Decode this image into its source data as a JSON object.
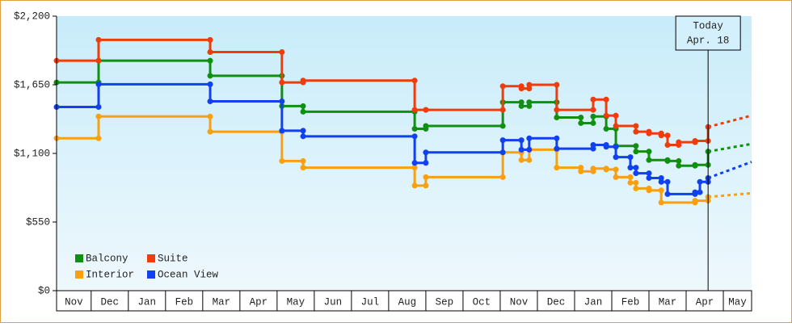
{
  "chart_data": {
    "type": "step-line",
    "xlim": [
      0.07,
      18.76
    ],
    "xticks": [
      1,
      2,
      3,
      4,
      5,
      6,
      7,
      8,
      9,
      10,
      11,
      12,
      13,
      14,
      15,
      16,
      17,
      18
    ],
    "month_labels": [
      "Nov",
      "Dec",
      "Jan",
      "Feb",
      "Mar",
      "Apr",
      "May",
      "Jun",
      "Jul",
      "Aug",
      "Sep",
      "Oct",
      "Nov",
      "Dec",
      "Jan",
      "Feb",
      "Mar",
      "Apr",
      "May"
    ],
    "ylim": [
      0,
      2200
    ],
    "yticks": [
      {
        "value": 0,
        "label": "$0"
      },
      {
        "value": 550,
        "label": "$550"
      },
      {
        "value": 1100,
        "label": "$1,100"
      },
      {
        "value": 1650,
        "label": "$1,650"
      },
      {
        "value": 2200,
        "label": "$2,200"
      }
    ],
    "today": {
      "x": 17.59,
      "label": "Today",
      "date": "Apr. 18"
    },
    "series": [
      {
        "name": "Balcony",
        "color": "#109010",
        "x": [
          0.07,
          1.2,
          4.2,
          6.13,
          6.7,
          9.7,
          10.0,
          12.07,
          12.57,
          12.78,
          13.52,
          14.17,
          14.5,
          14.85,
          15.11,
          15.65,
          16.0,
          16.5,
          16.8,
          17.24,
          17.59
        ],
        "values": [
          1669,
          1843,
          1722,
          1479,
          1434,
          1297,
          1320,
          1510,
          1479,
          1510,
          1388,
          1343,
          1396,
          1297,
          1160,
          1115,
          1047,
          1039,
          1001,
          1008,
          1115
        ],
        "forecast": 1176
      },
      {
        "name": "Suite",
        "color": "#f03c0a",
        "x": [
          0.07,
          1.2,
          4.2,
          6.13,
          6.7,
          9.7,
          10.0,
          12.07,
          12.57,
          12.78,
          13.52,
          14.5,
          14.85,
          15.11,
          15.65,
          16.0,
          16.33,
          16.5,
          16.8,
          17.24,
          17.59
        ],
        "values": [
          1843,
          2010,
          1912,
          1669,
          1684,
          1449,
          1449,
          1639,
          1620,
          1650,
          1449,
          1532,
          1403,
          1320,
          1274,
          1260,
          1244,
          1168,
          1190,
          1200,
          1312
        ],
        "forecast": 1403
      },
      {
        "name": "Interior",
        "color": "#f8a010",
        "x": [
          0.07,
          1.2,
          4.2,
          6.13,
          6.7,
          9.7,
          10.0,
          12.07,
          12.57,
          12.78,
          13.52,
          14.17,
          14.5,
          14.85,
          15.11,
          15.5,
          15.65,
          16.0,
          16.33,
          17.24,
          17.59
        ],
        "values": [
          1221,
          1396,
          1274,
          1039,
          986,
          842,
          910,
          1108,
          1047,
          1130,
          986,
          956,
          979,
          971,
          910,
          865,
          819,
          804,
          706,
          721,
          751
        ],
        "forecast": 781
      },
      {
        "name": "Ocean View",
        "color": "#1040f0",
        "x": [
          0.07,
          1.2,
          4.2,
          6.13,
          6.7,
          9.7,
          10.0,
          12.07,
          12.57,
          12.78,
          13.52,
          14.5,
          14.85,
          15.11,
          15.5,
          15.65,
          16.0,
          16.33,
          16.5,
          17.24,
          17.37,
          17.59
        ],
        "values": [
          1472,
          1654,
          1517,
          1282,
          1237,
          1024,
          1108,
          1206,
          1130,
          1221,
          1138,
          1168,
          1153,
          1070,
          986,
          941,
          903,
          872,
          774,
          789,
          872,
          903
        ],
        "forecast": 1032
      }
    ]
  }
}
